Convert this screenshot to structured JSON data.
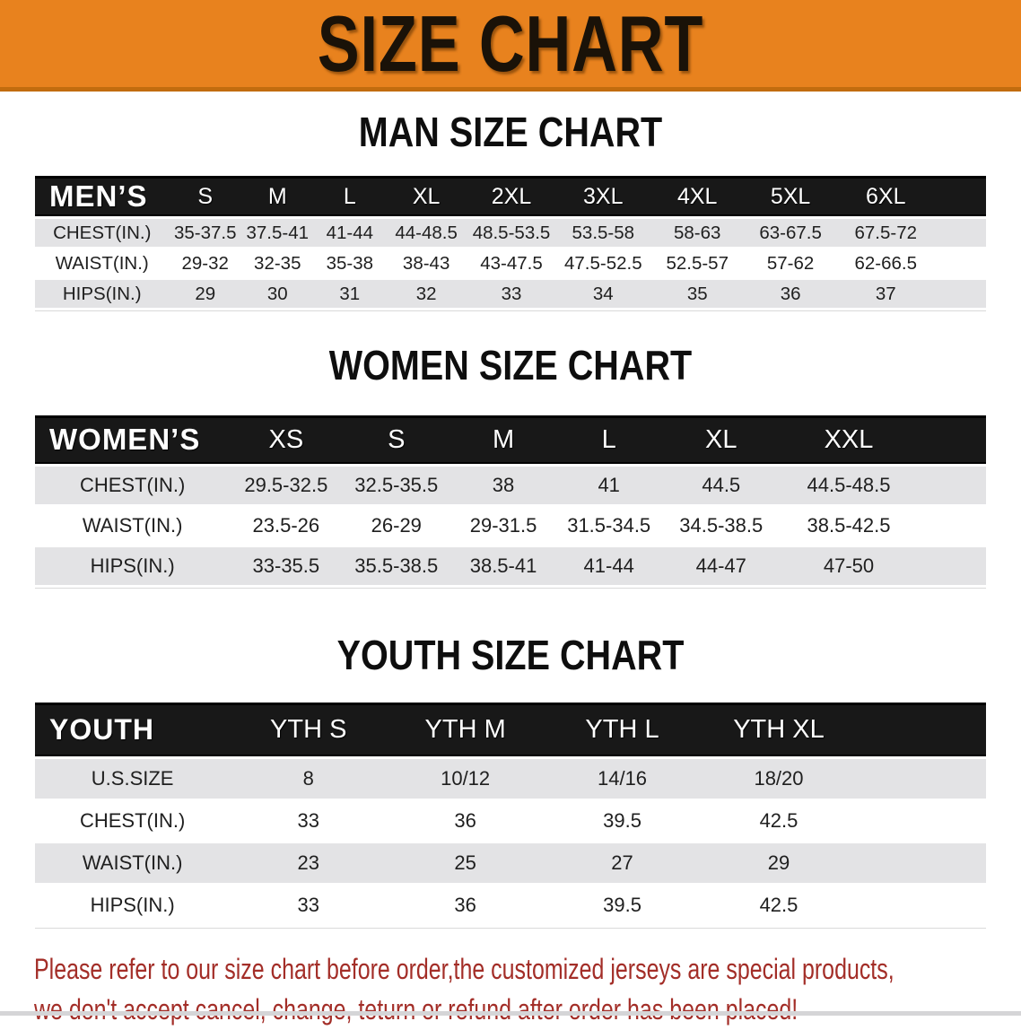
{
  "banner": {
    "title": "SIZE CHART"
  },
  "colors": {
    "banner_bg": "#E8821E",
    "banner_edge": "#C26C0E",
    "banner_text": "#1A1208",
    "header_band": "#181818",
    "row_gray": "#E3E3E5",
    "disclaimer_red": "#A32E28"
  },
  "sections": {
    "men": {
      "heading": "MAN SIZE CHART",
      "table": {
        "columns": [
          "MEN’S",
          "S",
          "M",
          "L",
          "XL",
          "2XL",
          "3XL",
          "4XL",
          "5XL",
          "6XL"
        ],
        "rows": [
          [
            "CHEST(IN.)",
            "35-37.5",
            "37.5-41",
            "41-44",
            "44-48.5",
            "48.5-53.5",
            "53.5-58",
            "58-63",
            "63-67.5",
            "67.5-72"
          ],
          [
            "WAIST(IN.)",
            "29-32",
            "32-35",
            "35-38",
            "38-43",
            "43-47.5",
            "47.5-52.5",
            "52.5-57",
            "57-62",
            "62-66.5"
          ],
          [
            "HIPS(IN.)",
            "29",
            "30",
            "31",
            "32",
            "33",
            "34",
            "35",
            "36",
            "37"
          ]
        ]
      }
    },
    "women": {
      "heading": "WOMEN SIZE CHART",
      "table": {
        "columns": [
          "WOMEN’S",
          "XS",
          "S",
          "M",
          "L",
          "XL",
          "XXL"
        ],
        "rows": [
          [
            "CHEST(IN.)",
            "29.5-32.5",
            "32.5-35.5",
            "38",
            "41",
            "44.5",
            "44.5-48.5"
          ],
          [
            "WAIST(IN.)",
            "23.5-26",
            "26-29",
            "29-31.5",
            "31.5-34.5",
            "34.5-38.5",
            "38.5-42.5"
          ],
          [
            "HIPS(IN.)",
            "33-35.5",
            "35.5-38.5",
            "38.5-41",
            "41-44",
            "44-47",
            "47-50"
          ]
        ]
      }
    },
    "youth": {
      "heading": "YOUTH SIZE CHART",
      "table": {
        "columns": [
          "YOUTH",
          "YTH S",
          "YTH M",
          "YTH L",
          "YTH XL"
        ],
        "rows": [
          [
            "U.S.SIZE",
            "8",
            "10/12",
            "14/16",
            "18/20"
          ],
          [
            "CHEST(IN.)",
            "33",
            "36",
            "39.5",
            "42.5"
          ],
          [
            "WAIST(IN.)",
            "23",
            "25",
            "27",
            "29"
          ],
          [
            "HIPS(IN.)",
            "33",
            "36",
            "39.5",
            "42.5"
          ]
        ]
      }
    }
  },
  "disclaimer": {
    "line1": "Please refer to our size chart before order,the customized jerseys are special products,",
    "line2": "we don't accept cancel, change, teturn or refund after order has been placed!"
  }
}
